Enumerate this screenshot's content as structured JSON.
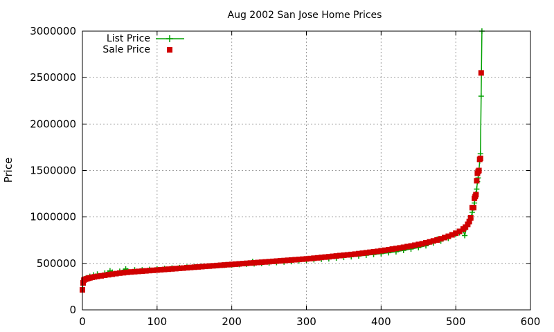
{
  "chart_data": {
    "type": "scatter",
    "title": "Aug 2002 San Jose Home Prices",
    "xlabel": "",
    "ylabel": "Price",
    "xlim": [
      0,
      600
    ],
    "ylim": [
      0,
      3000000
    ],
    "xticks": [
      0,
      100,
      200,
      300,
      400,
      500,
      600
    ],
    "yticks": [
      0,
      500000,
      1000000,
      1500000,
      2000000,
      2500000,
      3000000
    ],
    "grid": true,
    "legend_position": "top-left",
    "series": [
      {
        "name": "List Price",
        "marker": "plus",
        "connected": true,
        "color": "#00a000",
        "x": [
          0,
          1,
          2,
          5,
          10,
          15,
          20,
          30,
          37,
          40,
          50,
          58,
          60,
          70,
          80,
          90,
          100,
          110,
          120,
          130,
          140,
          150,
          160,
          170,
          180,
          190,
          200,
          210,
          220,
          228,
          230,
          240,
          250,
          260,
          270,
          280,
          290,
          300,
          310,
          320,
          330,
          340,
          350,
          360,
          370,
          380,
          390,
          400,
          410,
          420,
          430,
          440,
          450,
          460,
          470,
          475,
          480,
          490,
          500,
          505,
          510,
          512,
          515,
          518,
          520,
          522,
          524,
          525,
          526,
          527,
          528,
          529,
          530,
          531,
          532,
          533,
          534,
          535
        ],
        "y": [
          220000,
          300000,
          330000,
          345000,
          360000,
          375000,
          385000,
          395000,
          420000,
          405000,
          415000,
          440000,
          420000,
          430000,
          430000,
          435000,
          440000,
          445000,
          450000,
          455000,
          460000,
          463000,
          468000,
          472000,
          476000,
          480000,
          484000,
          488000,
          492000,
          520000,
          496000,
          500000,
          505000,
          510000,
          515000,
          520000,
          528000,
          535000,
          540000,
          545000,
          550000,
          558000,
          565000,
          572000,
          580000,
          588000,
          596000,
          605000,
          615000,
          625000,
          640000,
          655000,
          670000,
          690000,
          720000,
          760000,
          740000,
          770000,
          810000,
          830000,
          860000,
          800000,
          900000,
          940000,
          980000,
          1050000,
          1100000,
          1150000,
          1200000,
          1250000,
          1300000,
          1380000,
          1420000,
          1500000,
          1600000,
          1680000,
          2300000,
          3000000
        ]
      },
      {
        "name": "Sale Price",
        "marker": "square",
        "connected": false,
        "color": "#d00000",
        "x": [
          0,
          1,
          2,
          4,
          6,
          8,
          10,
          13,
          16,
          20,
          25,
          30,
          35,
          40,
          45,
          50,
          55,
          60,
          65,
          70,
          75,
          80,
          85,
          90,
          95,
          100,
          105,
          110,
          115,
          120,
          125,
          130,
          135,
          140,
          145,
          150,
          155,
          160,
          165,
          170,
          175,
          180,
          185,
          190,
          195,
          200,
          205,
          210,
          215,
          220,
          225,
          230,
          235,
          240,
          245,
          250,
          255,
          260,
          265,
          270,
          275,
          280,
          285,
          290,
          295,
          300,
          305,
          310,
          315,
          320,
          325,
          330,
          335,
          340,
          345,
          350,
          355,
          360,
          365,
          370,
          375,
          380,
          385,
          390,
          395,
          400,
          405,
          410,
          415,
          420,
          425,
          430,
          435,
          440,
          445,
          450,
          455,
          460,
          465,
          470,
          475,
          480,
          485,
          490,
          495,
          500,
          505,
          510,
          513,
          516,
          518,
          520,
          522,
          524,
          525,
          526,
          527,
          528,
          529,
          530,
          531,
          532,
          533,
          534
        ],
        "y": [
          215000,
          290000,
          320000,
          330000,
          335000,
          340000,
          345000,
          350000,
          355000,
          360000,
          366000,
          372000,
          378000,
          384000,
          390000,
          396000,
          400000,
          404000,
          408000,
          411000,
          414000,
          417000,
          420000,
          423000,
          426000,
          429000,
          432000,
          435000,
          438000,
          441000,
          444000,
          447000,
          450000,
          453000,
          456000,
          459000,
          462000,
          465000,
          468000,
          471000,
          474000,
          477000,
          480000,
          483000,
          486000,
          489000,
          492000,
          495000,
          498000,
          501000,
          504000,
          507000,
          510000,
          513000,
          516000,
          519000,
          522000,
          525000,
          528000,
          531000,
          534000,
          537000,
          540000,
          543000,
          546000,
          549000,
          552000,
          556000,
          560000,
          564000,
          568000,
          572000,
          576000,
          580000,
          584000,
          588000,
          592000,
          596000,
          600000,
          605000,
          610000,
          615000,
          620000,
          625000,
          630000,
          636000,
          642000,
          648000,
          654000,
          660000,
          667000,
          674000,
          681000,
          688000,
          696000,
          704000,
          712000,
          722000,
          732000,
          742000,
          752000,
          765000,
          778000,
          792000,
          808000,
          825000,
          845000,
          870000,
          890000,
          920000,
          950000,
          990000,
          1100000,
          1100000,
          1200000,
          1220000,
          1240000,
          1390000,
          1470000,
          1490000,
          1500000,
          1620000,
          1630000,
          2550000
        ]
      }
    ]
  },
  "colors": {
    "list_price": "#00a000",
    "sale_price": "#d00000",
    "grid": "#a0a0a0",
    "axis": "#000000"
  }
}
